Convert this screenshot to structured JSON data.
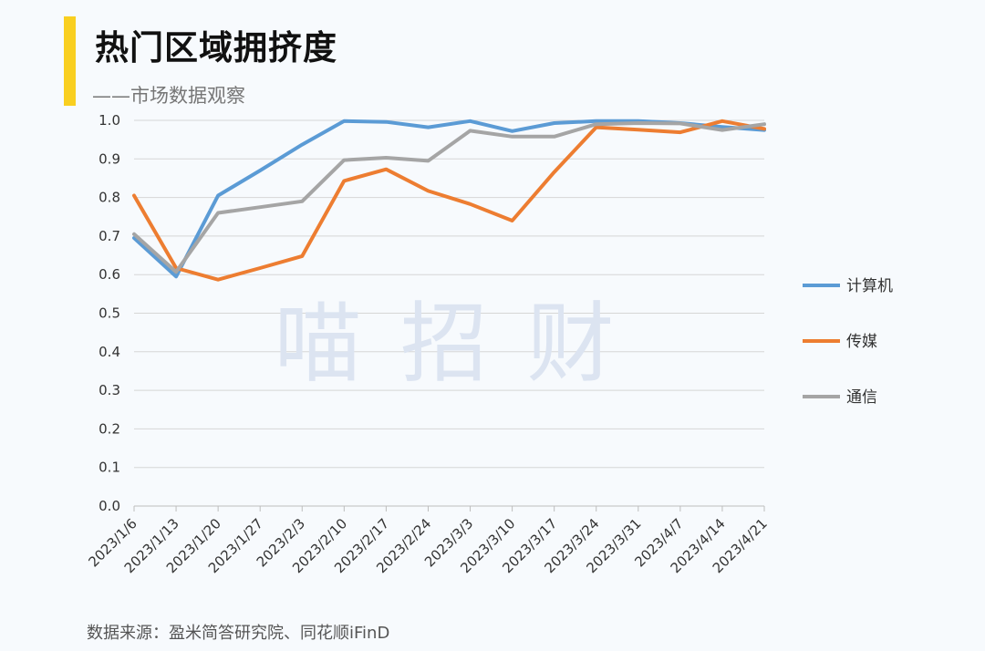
{
  "title": "热门区域拥挤度",
  "subtitle": "——市场数据观察",
  "source": "数据来源：盈米简答研究院、同花顺iFinD",
  "watermark": "喵 招 财",
  "chart_data": {
    "type": "line",
    "categories": [
      "2023/1/6",
      "2023/1/13",
      "2023/1/20",
      "2023/1/27",
      "2023/2/3",
      "2023/2/10",
      "2023/2/17",
      "2023/2/24",
      "2023/3/3",
      "2023/3/10",
      "2023/3/17",
      "2023/3/24",
      "2023/3/31",
      "2023/4/7",
      "2023/4/14",
      "2023/4/21"
    ],
    "ylim": [
      0,
      1.0
    ],
    "yticks": [
      "0.0",
      "0.1",
      "0.2",
      "0.3",
      "0.4",
      "0.5",
      "0.6",
      "0.7",
      "0.8",
      "0.9",
      "1.0"
    ],
    "grid": true,
    "legend_position": "right",
    "series": [
      {
        "name": "计算机",
        "color": "#5b9bd5",
        "values": [
          0.695,
          0.595,
          0.805,
          0.87,
          0.937,
          0.998,
          0.996,
          0.982,
          0.998,
          0.972,
          0.993,
          0.998,
          0.998,
          0.993,
          0.983,
          0.975
        ]
      },
      {
        "name": "传媒",
        "color": "#ed7d31",
        "values": [
          0.805,
          0.617,
          0.587,
          0.617,
          0.648,
          0.843,
          0.873,
          0.817,
          0.783,
          0.74,
          0.866,
          0.982,
          0.976,
          0.969,
          0.998,
          0.978
        ]
      },
      {
        "name": "通信",
        "color": "#a5a5a5",
        "values": [
          0.705,
          0.607,
          0.76,
          0.775,
          0.79,
          0.897,
          0.903,
          0.895,
          0.973,
          0.958,
          0.958,
          0.99,
          0.993,
          0.992,
          0.975,
          0.99
        ]
      }
    ]
  }
}
